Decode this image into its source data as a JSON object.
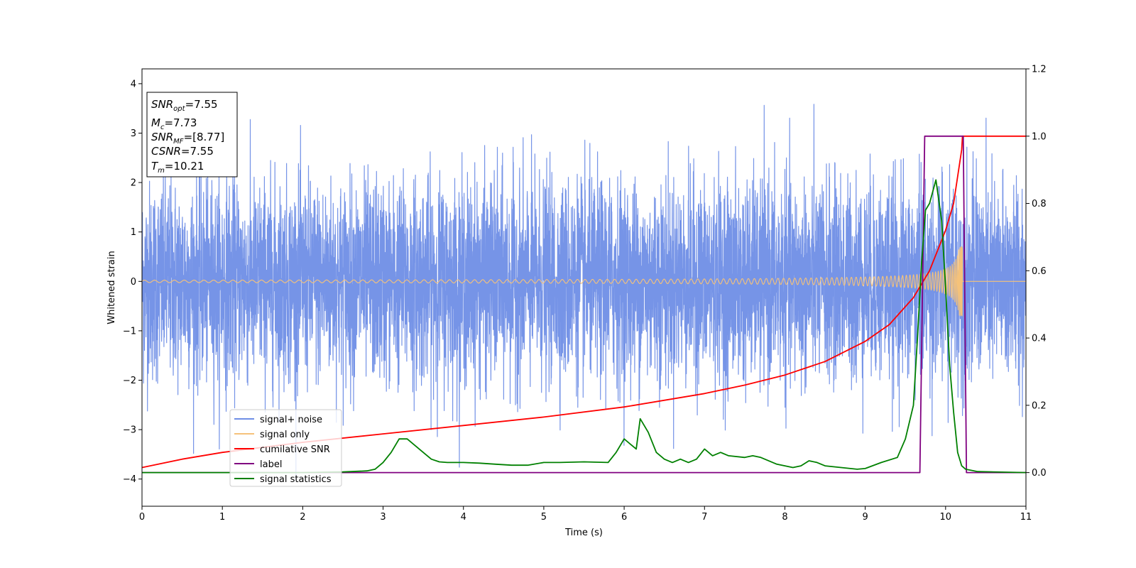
{
  "chart_data": {
    "type": "line",
    "title": "",
    "xlabel": "Time (s)",
    "ylabel": "Whitened strain",
    "xlim": [
      0,
      11
    ],
    "ylim": [
      -4.55,
      4.3
    ],
    "y2lim": [
      -0.1,
      1.2
    ],
    "xticks": [
      0,
      1,
      2,
      3,
      4,
      5,
      6,
      7,
      8,
      9,
      10,
      11
    ],
    "yticks": [
      -4,
      -3,
      -2,
      -1,
      0,
      1,
      2,
      3,
      4
    ],
    "y2ticks": [
      "0.0",
      "0.2",
      "0.4",
      "0.6",
      "0.8",
      "1.0",
      "1.2"
    ],
    "grid": false,
    "legend_position": "lower-left",
    "annotation": {
      "lines": [
        {
          "base": "SNR",
          "sub": "opt",
          "value": "=7.55"
        },
        {
          "base": "M",
          "sub": "c",
          "value": "=7.73"
        },
        {
          "base": "SNR",
          "sub": "MF",
          "value": "=[8.77]"
        },
        {
          "base": "CSNR",
          "sub": "",
          "value": "=7.55"
        },
        {
          "base": "T",
          "sub": "m",
          "value": "=10.21"
        }
      ]
    },
    "series": [
      {
        "name": "signal+ noise",
        "color": "#6f8ee6",
        "axis": "left",
        "kind": "noise",
        "std": 1.0,
        "samples": 6000
      },
      {
        "name": "signal only",
        "color": "#f5c27a",
        "axis": "left",
        "kind": "chirp",
        "t_merge": 10.21
      },
      {
        "name": "cumilative SNR",
        "color": "#ff0000",
        "axis": "right",
        "x": [
          0,
          0.5,
          1,
          2,
          3,
          4,
          5,
          6,
          7,
          7.5,
          8,
          8.5,
          9,
          9.3,
          9.6,
          9.8,
          10.0,
          10.1,
          10.2,
          10.21,
          10.25,
          11
        ],
        "values": [
          0.015,
          0.04,
          0.06,
          0.09,
          0.115,
          0.14,
          0.165,
          0.195,
          0.235,
          0.26,
          0.29,
          0.33,
          0.39,
          0.44,
          0.52,
          0.6,
          0.72,
          0.8,
          0.96,
          1.0,
          1.0,
          1.0
        ]
      },
      {
        "name": "label",
        "color": "#800080",
        "axis": "right",
        "x": [
          0,
          9.68,
          9.74,
          10.22,
          10.26,
          11
        ],
        "values": [
          0,
          0,
          1,
          1,
          0,
          0
        ]
      },
      {
        "name": "signal statistics",
        "color": "#008000",
        "axis": "right",
        "x": [
          0,
          1,
          2,
          2.5,
          2.8,
          2.9,
          3.0,
          3.1,
          3.2,
          3.3,
          3.4,
          3.5,
          3.6,
          3.7,
          3.8,
          4.0,
          4.2,
          4.4,
          4.6,
          4.8,
          5.0,
          5.2,
          5.5,
          5.8,
          5.9,
          6.0,
          6.1,
          6.15,
          6.2,
          6.3,
          6.4,
          6.5,
          6.6,
          6.7,
          6.8,
          6.9,
          7.0,
          7.1,
          7.2,
          7.3,
          7.5,
          7.6,
          7.7,
          7.9,
          8.1,
          8.2,
          8.3,
          8.4,
          8.5,
          8.7,
          8.9,
          9.0,
          9.2,
          9.4,
          9.5,
          9.6,
          9.65,
          9.7,
          9.75,
          9.8,
          9.88,
          9.95,
          10.0,
          10.05,
          10.1,
          10.15,
          10.2,
          10.25,
          10.4,
          11
        ],
        "values": [
          0,
          0.0,
          0.0,
          0.002,
          0.005,
          0.01,
          0.03,
          0.06,
          0.1,
          0.1,
          0.08,
          0.06,
          0.04,
          0.032,
          0.03,
          0.03,
          0.028,
          0.025,
          0.022,
          0.022,
          0.03,
          0.03,
          0.032,
          0.03,
          0.06,
          0.1,
          0.08,
          0.07,
          0.16,
          0.12,
          0.06,
          0.04,
          0.03,
          0.04,
          0.03,
          0.04,
          0.07,
          0.05,
          0.06,
          0.05,
          0.045,
          0.05,
          0.045,
          0.025,
          0.015,
          0.02,
          0.035,
          0.03,
          0.02,
          0.015,
          0.01,
          0.012,
          0.03,
          0.045,
          0.1,
          0.2,
          0.4,
          0.62,
          0.78,
          0.8,
          0.87,
          0.75,
          0.55,
          0.32,
          0.18,
          0.06,
          0.02,
          0.01,
          0.003,
          0.0
        ]
      }
    ]
  }
}
